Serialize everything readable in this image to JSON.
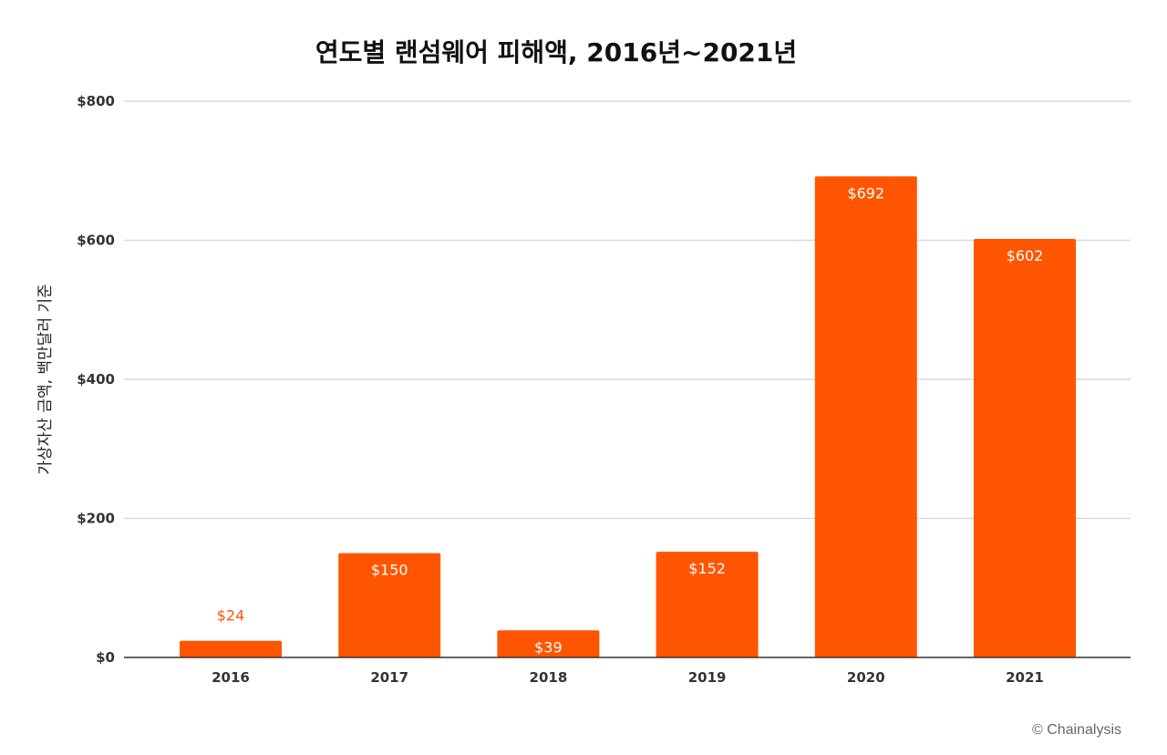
{
  "chart_data": {
    "type": "bar",
    "title": "연도별 랜섬웨어 피해액, 2016년~2021년",
    "xlabel": "",
    "ylabel": "가상자산 금액, 백만달러 기준",
    "categories": [
      "2016",
      "2017",
      "2018",
      "2019",
      "2020",
      "2021"
    ],
    "values": [
      24,
      150,
      39,
      152,
      692,
      602
    ],
    "data_labels": [
      "$24",
      "$150",
      "$39",
      "$152",
      "$692",
      "$602"
    ],
    "ylim": [
      0,
      800
    ],
    "yticks": [
      0,
      200,
      400,
      600,
      800
    ],
    "ytick_labels": [
      "$0",
      "$200",
      "$400",
      "$600",
      "$800"
    ],
    "grid": true,
    "legend": "none",
    "bar_color": "#FF5500",
    "credit": "© Chainalysis"
  }
}
